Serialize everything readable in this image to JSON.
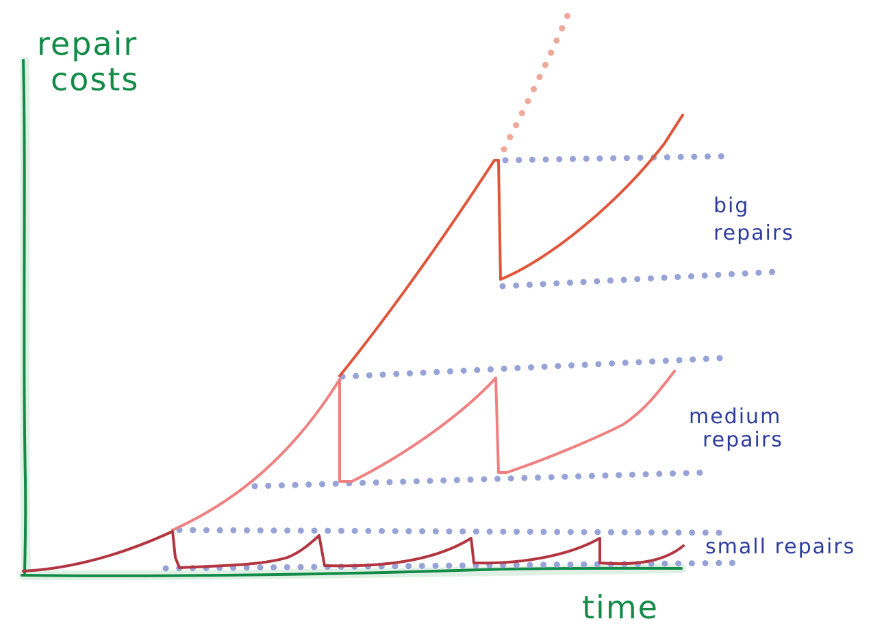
{
  "axes": {
    "y_label_line1": "repair",
    "y_label_line2": "costs",
    "x_label": "time",
    "color": "#138a48"
  },
  "annotations": {
    "big_line1": "big",
    "big_line2": "repairs",
    "medium_line1": "medium",
    "medium_line2": "repairs",
    "small": "small repairs",
    "color": "#2e3d9c"
  },
  "colors": {
    "small_curve": "#b23540",
    "medium_curve": "#f08080",
    "big_curve": "#e0553a",
    "dotted_bands": "#97a3d6",
    "extrapolation": "#f0a898"
  }
}
